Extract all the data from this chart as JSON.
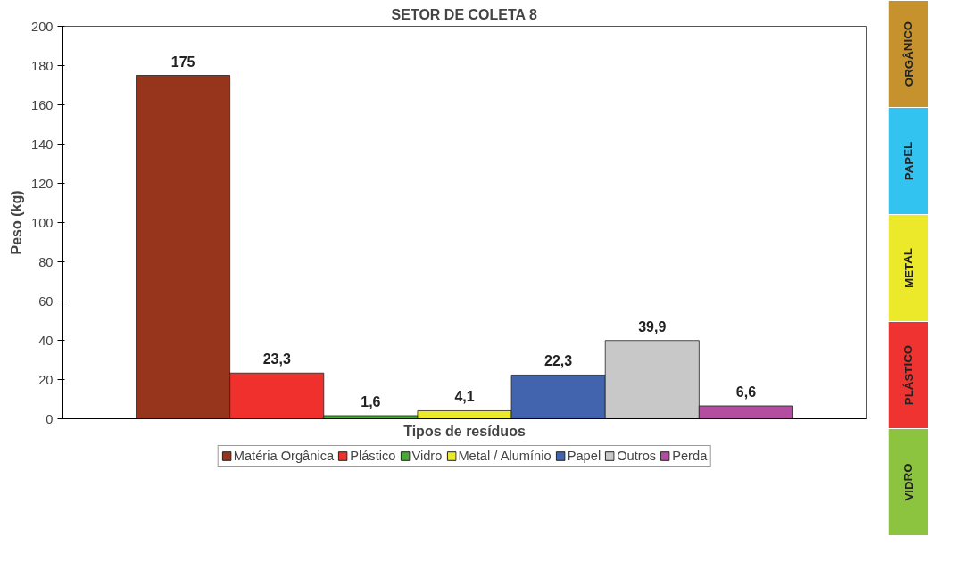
{
  "chart_data": {
    "type": "bar",
    "title": "SETOR DE COLETA 8",
    "xlabel": "Tipos de resíduos",
    "ylabel": "Peso (kg)",
    "categories": [
      null,
      null,
      null,
      null,
      null,
      null,
      null
    ],
    "series": [
      {
        "name": "Matéria Orgânica",
        "color": "#97351c",
        "values": [
          175,
          null,
          null,
          null,
          null,
          null,
          null
        ]
      },
      {
        "name": "Plástico",
        "color": "#ef302c",
        "values": [
          null,
          23.3,
          null,
          null,
          null,
          null,
          null
        ]
      },
      {
        "name": "Vidro",
        "color": "#4aa73a",
        "values": [
          null,
          null,
          1.6,
          null,
          null,
          null,
          null
        ]
      },
      {
        "name": "Metal / Alumínio",
        "color": "#ecea2b",
        "values": [
          null,
          null,
          null,
          4.1,
          null,
          null,
          null
        ]
      },
      {
        "name": "Papel",
        "color": "#4263ae",
        "values": [
          null,
          null,
          null,
          null,
          22.3,
          null,
          null
        ]
      },
      {
        "name": "Outros",
        "color": "#c8c8c8",
        "values": [
          null,
          null,
          null,
          null,
          null,
          39.9,
          null
        ]
      },
      {
        "name": "Perda",
        "color": "#b24d9f",
        "values": [
          null,
          null,
          null,
          null,
          null,
          null,
          6.6
        ]
      }
    ],
    "ylim": [
      0,
      200
    ],
    "yticks": [
      0,
      20,
      40,
      60,
      80,
      100,
      120,
      140,
      160,
      180,
      200
    ],
    "stacked": true,
    "value_labels": [
      "175",
      "23,3",
      "1,6",
      "4,1",
      "22,3",
      "39,9",
      "6,6"
    ],
    "legend": "bottom",
    "annotations": [
      "ORGÂNICO",
      "PAPEL",
      "METAL",
      "PLÁSTICO",
      "VIDRO"
    ]
  }
}
